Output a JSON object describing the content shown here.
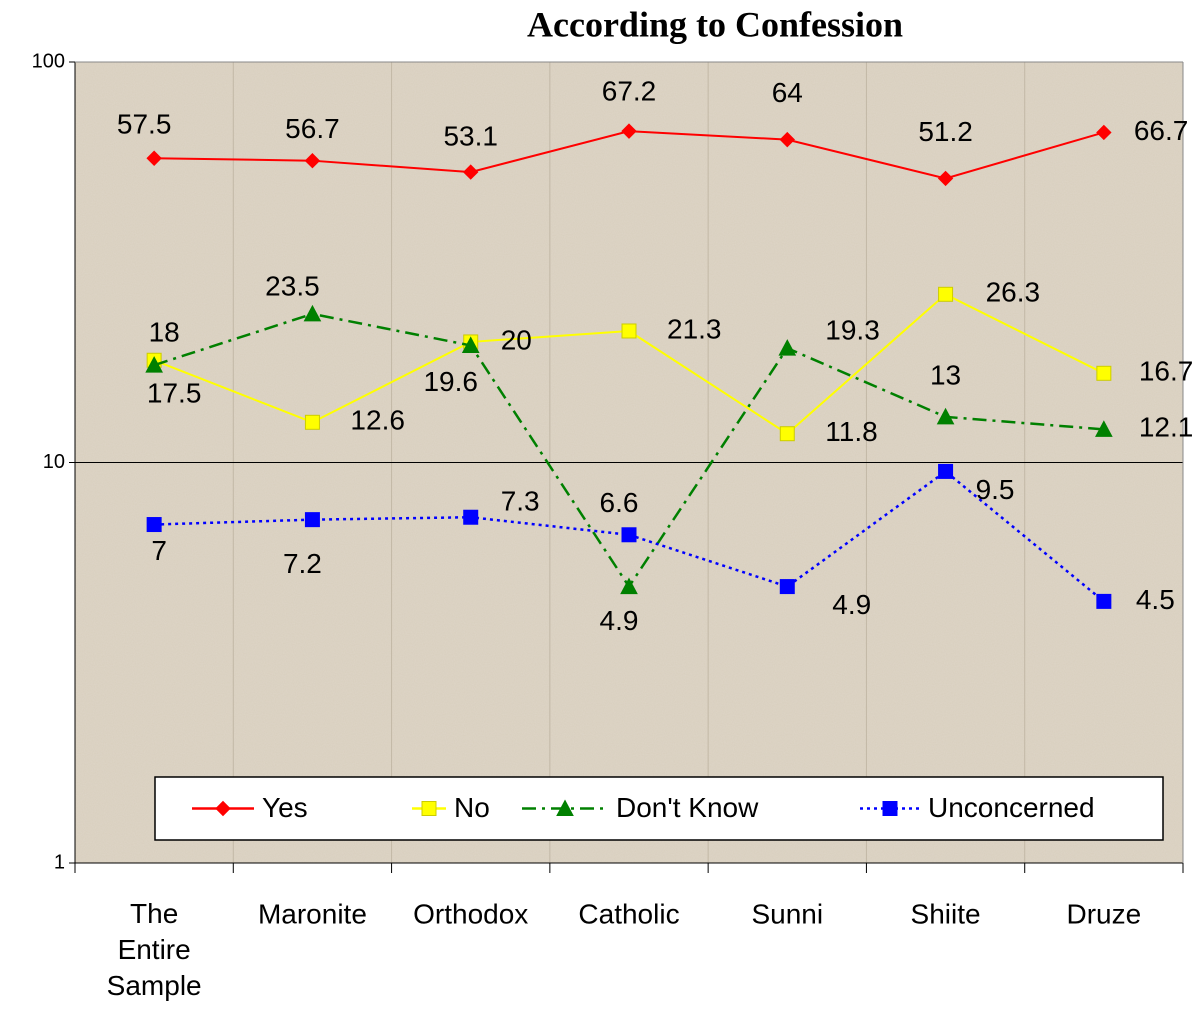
{
  "chart_data": {
    "type": "line",
    "title": "According to Confession",
    "categories": [
      "The Entire Sample",
      "Maronite",
      "Orthodox",
      "Catholic",
      "Sunni",
      "Shiite",
      "Druze"
    ],
    "series": [
      {
        "name": "Yes",
        "color": "#ff0000",
        "marker": "diamond",
        "line_style": "solid",
        "values": [
          57.5,
          56.7,
          53.1,
          67.2,
          64,
          51.2,
          66.7
        ]
      },
      {
        "name": "No",
        "color": "#ffff00",
        "marker": "square",
        "line_style": "solid",
        "values": [
          18,
          12.6,
          20,
          21.3,
          11.8,
          26.3,
          16.7
        ]
      },
      {
        "name": "Don't Know",
        "color": "#008000",
        "marker": "triangle",
        "line_style": "dashdot",
        "values": [
          17.5,
          23.5,
          19.6,
          4.9,
          19.3,
          13,
          12.1
        ]
      },
      {
        "name": "Unconcerned",
        "color": "#0000ff",
        "marker": "square",
        "line_style": "dotted",
        "values": [
          7,
          7.2,
          7.3,
          6.6,
          4.9,
          9.5,
          4.5
        ]
      }
    ],
    "ylim": [
      1,
      100
    ],
    "yticks": [
      1,
      10,
      100
    ],
    "log_y": true,
    "grid": true,
    "legend": "bottom"
  }
}
